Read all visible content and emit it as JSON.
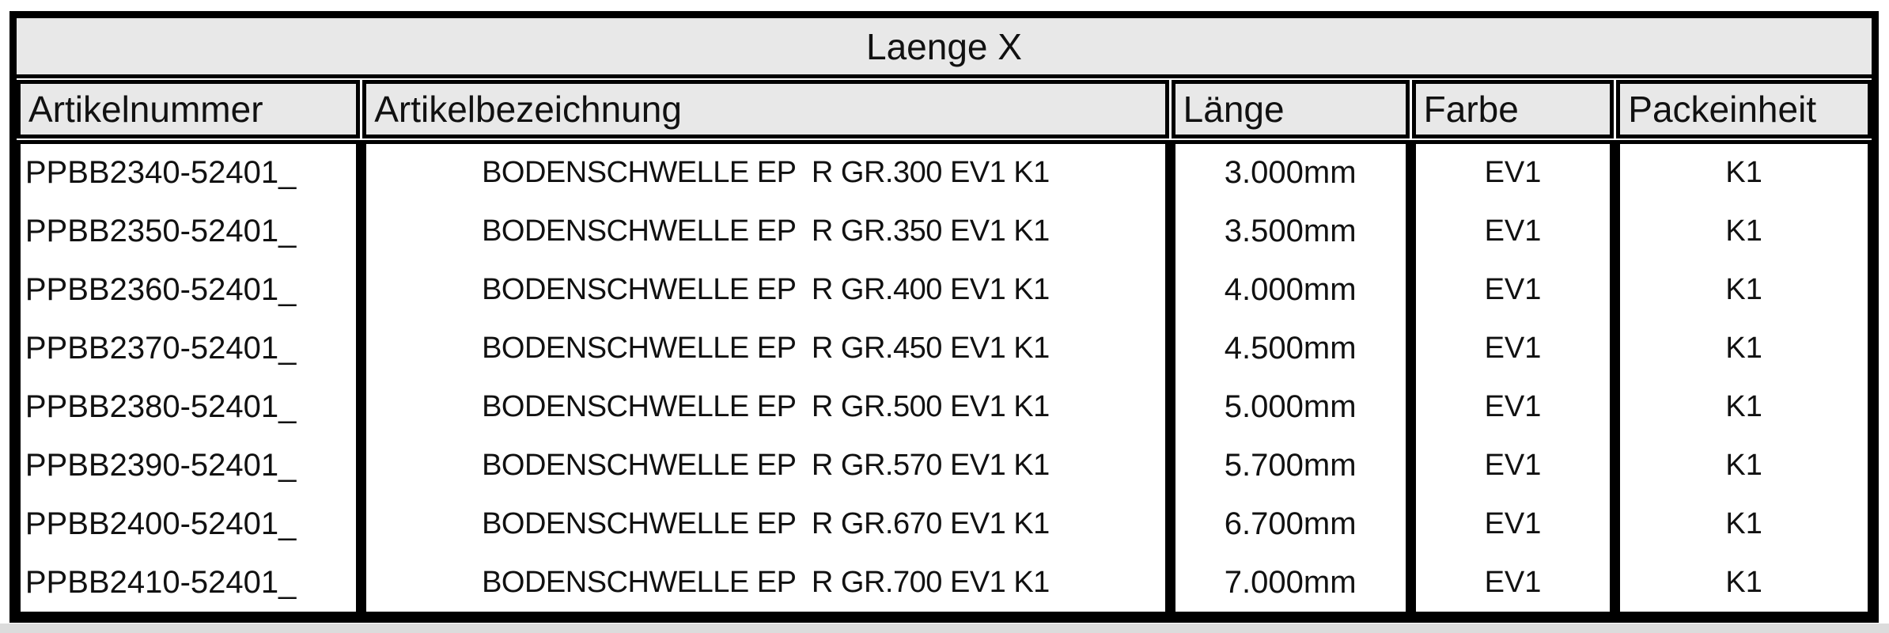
{
  "title": "Laenge X",
  "columns": [
    "Artikelnummer",
    "Artikelbezeichnung",
    "Länge",
    "Farbe",
    "Packeinheit"
  ],
  "row_keys": [
    "artikelnummer",
    "artikelbezeichnung",
    "laenge",
    "farbe",
    "packeinheit"
  ],
  "rows": [
    {
      "artikelnummer": "PPBB2340-52401_",
      "artikelbezeichnung": "BODENSCHWELLE EP  R GR.300 EV1 K1",
      "laenge": "3.000mm",
      "farbe": "EV1",
      "packeinheit": "K1"
    },
    {
      "artikelnummer": "PPBB2350-52401_",
      "artikelbezeichnung": "BODENSCHWELLE EP  R GR.350 EV1 K1",
      "laenge": "3.500mm",
      "farbe": "EV1",
      "packeinheit": "K1"
    },
    {
      "artikelnummer": "PPBB2360-52401_",
      "artikelbezeichnung": "BODENSCHWELLE EP  R GR.400 EV1 K1",
      "laenge": "4.000mm",
      "farbe": "EV1",
      "packeinheit": "K1"
    },
    {
      "artikelnummer": "PPBB2370-52401_",
      "artikelbezeichnung": "BODENSCHWELLE EP  R GR.450 EV1 K1",
      "laenge": "4.500mm",
      "farbe": "EV1",
      "packeinheit": "K1"
    },
    {
      "artikelnummer": "PPBB2380-52401_",
      "artikelbezeichnung": "BODENSCHWELLE EP  R GR.500 EV1 K1",
      "laenge": "5.000mm",
      "farbe": "EV1",
      "packeinheit": "K1"
    },
    {
      "artikelnummer": "PPBB2390-52401_",
      "artikelbezeichnung": "BODENSCHWELLE EP  R GR.570 EV1 K1",
      "laenge": "5.700mm",
      "farbe": "EV1",
      "packeinheit": "K1"
    },
    {
      "artikelnummer": "PPBB2400-52401_",
      "artikelbezeichnung": "BODENSCHWELLE EP  R GR.670 EV1 K1",
      "laenge": "6.700mm",
      "farbe": "EV1",
      "packeinheit": "K1"
    },
    {
      "artikelnummer": "PPBB2410-52401_",
      "artikelbezeichnung": "BODENSCHWELLE EP  R GR.700 EV1 K1",
      "laenge": "7.000mm",
      "farbe": "EV1",
      "packeinheit": "K1"
    }
  ],
  "colors": {
    "header_bg": "#e8e8e8",
    "border": "#000000",
    "row_bg": "#ffffff",
    "text": "#111111",
    "page_edge": "#dcdcdc"
  }
}
